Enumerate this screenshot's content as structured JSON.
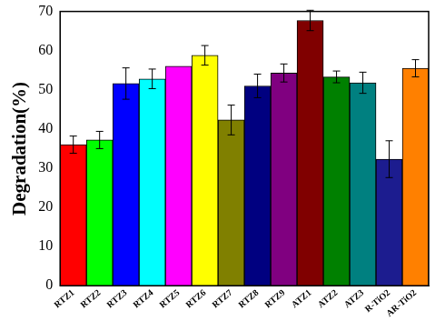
{
  "chart_data": {
    "type": "bar",
    "y_label": "Degradation(%)",
    "categories": [
      "RTZ1",
      "RTZ2",
      "RTZ3",
      "RTZ4",
      "RTZ5",
      "RTZ6",
      "RTZ7",
      "RTZ8",
      "RTZ9",
      "ATZ1",
      "ATZ2",
      "ATZ3",
      "R-TiO2",
      "AR-TiO2"
    ],
    "values": [
      36,
      37.2,
      51.6,
      52.8,
      56,
      58.8,
      42.3,
      51,
      54.3,
      67.7,
      53.3,
      51.8,
      32.3,
      55.5
    ],
    "errors": [
      2.2,
      2.2,
      4,
      2.5,
      0,
      2.5,
      3.8,
      3,
      2.3,
      2.6,
      1.5,
      2.7,
      4.7,
      2.2
    ],
    "colors": [
      "#ff0000",
      "#00ff00",
      "#0000ff",
      "#00ffff",
      "#ff00ff",
      "#ffff00",
      "#808000",
      "#000080",
      "#800080",
      "#800000",
      "#008000",
      "#008080",
      "#1c1c8f",
      "#ff8000"
    ],
    "ylim": [
      0,
      70
    ],
    "yticks": [
      0,
      10,
      20,
      30,
      40,
      50,
      60,
      70
    ],
    "grid": false
  }
}
